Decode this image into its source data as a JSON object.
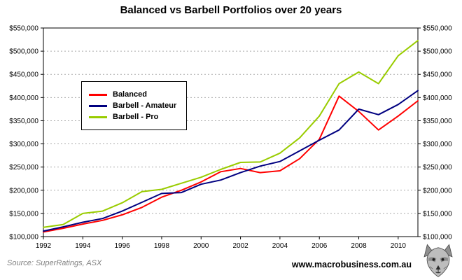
{
  "chart_data": {
    "type": "line",
    "title": "Balanced vs Barbell Portfolios over 20 years",
    "x": [
      1992,
      1993,
      1994,
      1995,
      1996,
      1997,
      1998,
      1999,
      2000,
      2001,
      2002,
      2003,
      2004,
      2005,
      2006,
      2007,
      2008,
      2009,
      2010,
      2011
    ],
    "x_tick_interval": 2,
    "ylim": [
      100000,
      550000
    ],
    "ytick_step": 50000,
    "currency_prefix": "$",
    "grid": "horizontal-dotted",
    "legend_position": "upper-left-inside",
    "series": [
      {
        "name": "Balanced",
        "color": "#FF0000",
        "values": [
          110000,
          118000,
          127000,
          135000,
          147000,
          163000,
          185000,
          200000,
          218000,
          240000,
          247000,
          238000,
          242000,
          268000,
          310000,
          403000,
          370000,
          330000,
          360000,
          393000
        ]
      },
      {
        "name": "Barbell - Amateur",
        "color": "#000080",
        "values": [
          112000,
          121000,
          131000,
          139000,
          155000,
          174000,
          193000,
          195000,
          213000,
          222000,
          238000,
          252000,
          262000,
          285000,
          308000,
          330000,
          375000,
          363000,
          385000,
          415000
        ]
      },
      {
        "name": "Barbell - Pro",
        "color": "#99CC00",
        "values": [
          120000,
          126000,
          150000,
          155000,
          173000,
          197000,
          202000,
          215000,
          228000,
          245000,
          260000,
          261000,
          280000,
          313000,
          360000,
          430000,
          455000,
          430000,
          490000,
          523000
        ]
      }
    ]
  },
  "footer": {
    "source": "Source: SuperRatings, ASX",
    "website": "www.macrobusiness.com.au",
    "logo": "wolf-logo"
  },
  "colors": {
    "grid": "#ABABAB",
    "axis": "#000000",
    "background": "#FFFFFF",
    "source_text": "#808080"
  }
}
